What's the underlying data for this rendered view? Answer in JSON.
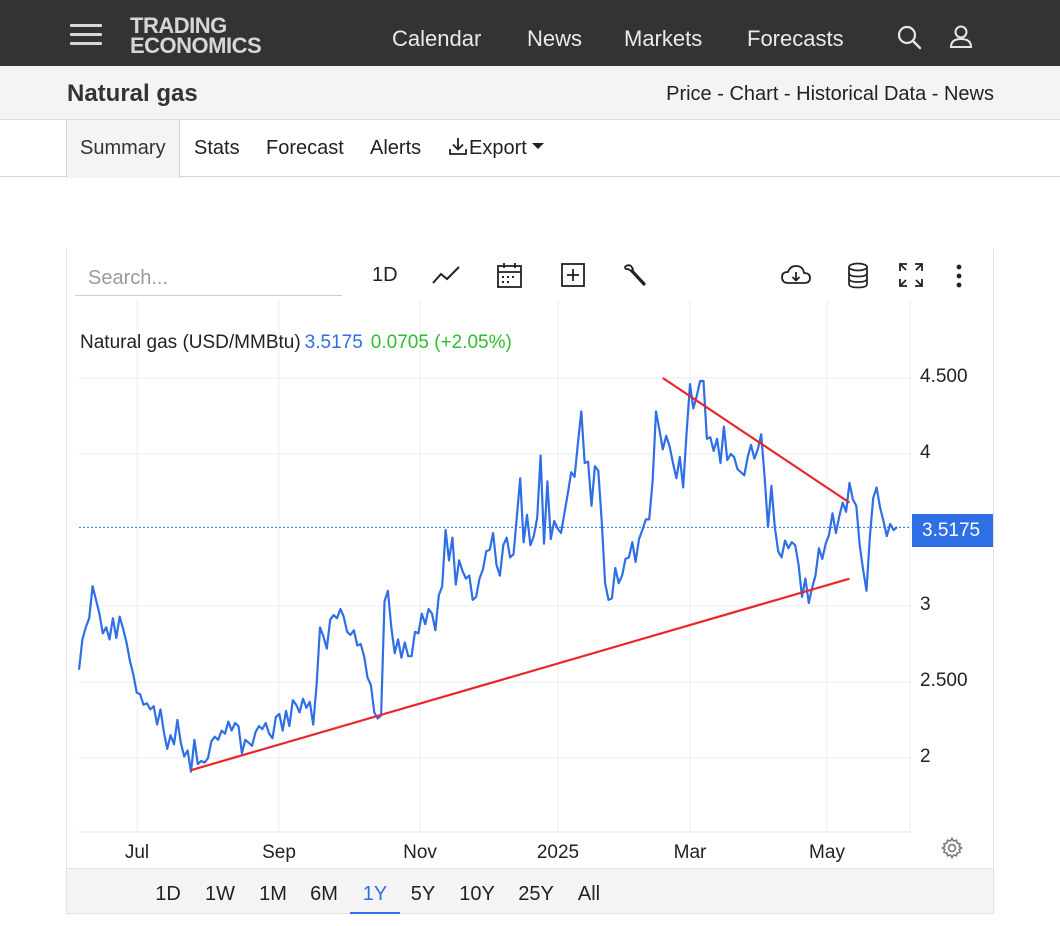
{
  "header": {
    "logo_line1": "TRADING",
    "logo_line2": "ECONOMICS",
    "nav": [
      "Calendar",
      "News",
      "Markets",
      "Forecasts"
    ],
    "icons": [
      "menu-icon",
      "search-icon",
      "user-icon"
    ]
  },
  "titlebar": {
    "title": "Natural gas",
    "links": [
      "Price",
      "Chart",
      "Historical Data",
      "News"
    ],
    "separator": " - "
  },
  "tabs": {
    "items": [
      "Summary",
      "Stats",
      "Forecast",
      "Alerts"
    ],
    "export_label": "Export",
    "active": "Summary"
  },
  "toolbar": {
    "search_placeholder": "Search...",
    "interval_label": "1D",
    "icons": [
      "line-chart-icon",
      "calendar-icon",
      "add-indicator-icon",
      "wrench-icon",
      "download-cloud-icon",
      "database-icon",
      "fullscreen-icon",
      "more-vert-icon"
    ]
  },
  "legend": {
    "name": "Natural gas (USD/MMBtu)",
    "price": "3.5175",
    "change": "0.0705 (+2.05%)"
  },
  "price_tag": "3.5175",
  "colors": {
    "series": "#2f6fe5",
    "trendline": "#e8262b",
    "change_positive": "#2ebd2e",
    "header_bg": "#333333"
  },
  "chart_data": {
    "type": "line",
    "series": [
      {
        "name": "Natural gas (USD/MMBtu)",
        "values": [
          2.58,
          2.78,
          2.86,
          2.92,
          3.13,
          3.04,
          2.95,
          2.82,
          2.86,
          2.78,
          2.92,
          2.79,
          2.93,
          2.85,
          2.76,
          2.64,
          2.55,
          2.43,
          2.42,
          2.35,
          2.36,
          2.32,
          2.34,
          2.22,
          2.32,
          2.17,
          2.06,
          2.15,
          2.09,
          2.25,
          2.1,
          2.01,
          2.05,
          1.91,
          2.12,
          1.96,
          1.98,
          1.97,
          2.0,
          2.11,
          2.14,
          2.12,
          2.18,
          2.16,
          2.24,
          2.18,
          2.23,
          2.21,
          2.03,
          2.12,
          2.1,
          2.08,
          2.17,
          2.21,
          2.19,
          2.23,
          2.16,
          2.13,
          2.27,
          2.29,
          2.18,
          2.31,
          2.21,
          2.38,
          2.35,
          2.3,
          2.39,
          2.33,
          2.37,
          2.22,
          2.48,
          2.86,
          2.8,
          2.72,
          2.91,
          2.94,
          2.92,
          2.98,
          2.93,
          2.83,
          2.81,
          2.84,
          2.74,
          2.75,
          2.67,
          2.53,
          2.48,
          2.3,
          2.26,
          2.28,
          3.03,
          3.1,
          2.86,
          2.69,
          2.78,
          2.66,
          2.76,
          2.67,
          2.67,
          2.83,
          2.82,
          2.95,
          2.88,
          2.98,
          2.95,
          2.84,
          3.07,
          3.13,
          3.5,
          3.3,
          3.45,
          3.14,
          3.3,
          3.23,
          3.18,
          3.2,
          3.04,
          3.06,
          3.18,
          3.24,
          3.36,
          3.37,
          3.48,
          3.27,
          3.2,
          3.4,
          3.45,
          3.32,
          3.34,
          3.59,
          3.84,
          3.42,
          3.6,
          3.4,
          3.46,
          3.58,
          3.99,
          3.41,
          3.82,
          3.44,
          3.56,
          3.51,
          3.48,
          3.61,
          3.74,
          3.88,
          3.85,
          4.07,
          4.28,
          3.94,
          3.95,
          3.66,
          3.92,
          3.89,
          3.56,
          3.15,
          3.04,
          3.05,
          3.25,
          3.15,
          3.2,
          3.31,
          3.32,
          3.42,
          3.29,
          3.44,
          3.5,
          3.57,
          3.57,
          3.82,
          4.28,
          4.16,
          4.03,
          4.12,
          4.05,
          3.94,
          3.84,
          3.98,
          3.78,
          4.14,
          4.46,
          4.3,
          4.38,
          4.48,
          4.48,
          4.1,
          4.11,
          4.02,
          4.1,
          3.94,
          4.18,
          3.96,
          4.0,
          3.98,
          3.9,
          3.88,
          3.86,
          3.98,
          4.06,
          3.97,
          4.03,
          4.13,
          3.85,
          3.52,
          3.79,
          3.52,
          3.36,
          3.32,
          3.43,
          3.38,
          3.42,
          3.4,
          3.27,
          3.06,
          3.18,
          3.02,
          3.12,
          3.2,
          3.38,
          3.31,
          3.41,
          3.47,
          3.61,
          3.48,
          3.59,
          3.68,
          3.62,
          3.81,
          3.7,
          3.66,
          3.4,
          3.24,
          3.1,
          3.45,
          3.71,
          3.78,
          3.65,
          3.56,
          3.46,
          3.54,
          3.5,
          3.52
        ]
      }
    ],
    "x_ticks": [
      "Jul",
      "Sep",
      "Nov",
      "2025",
      "Mar",
      "May"
    ],
    "y_ticks": [
      "2",
      "2.500",
      "3",
      "4",
      "4.500"
    ],
    "ylim": [
      1.5,
      5.0
    ],
    "trendlines": [
      {
        "from": [
          33,
          1.92
        ],
        "to": [
          227,
          3.18
        ]
      },
      {
        "from": [
          172,
          4.5
        ],
        "to": [
          227,
          3.68
        ]
      }
    ],
    "last_value_line": 3.5175,
    "grid": true
  },
  "ranges": {
    "items": [
      "1D",
      "1W",
      "1M",
      "6M",
      "1Y",
      "5Y",
      "10Y",
      "25Y",
      "All"
    ],
    "active": "1Y"
  }
}
